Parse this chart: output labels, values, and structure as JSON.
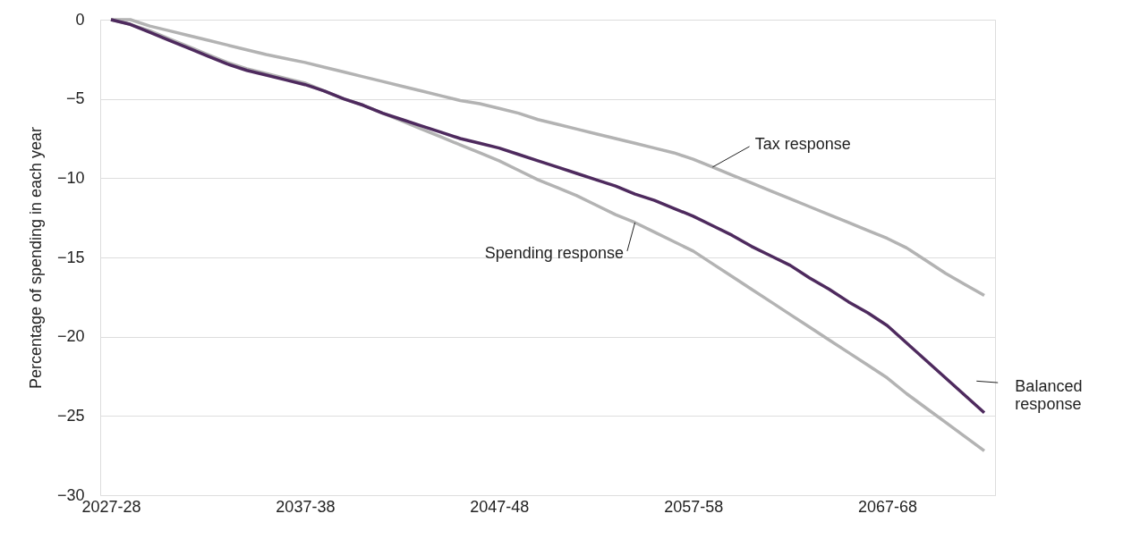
{
  "chart_data": {
    "type": "line",
    "ylabel": "Percentage of spending in each year",
    "categories": [
      "2027-28",
      null,
      null,
      null,
      null,
      null,
      null,
      null,
      null,
      null,
      "2037-38",
      null,
      null,
      null,
      null,
      null,
      null,
      null,
      null,
      null,
      "2047-48",
      null,
      null,
      null,
      null,
      null,
      null,
      null,
      null,
      null,
      "2057-58",
      null,
      null,
      null,
      null,
      null,
      null,
      null,
      null,
      null,
      "2067-68",
      null,
      null,
      null,
      null,
      null
    ],
    "series": [
      {
        "name": "Tax response",
        "color": "#b3b3b3",
        "values": [
          0,
          0,
          -0.4,
          -0.7,
          -1.0,
          -1.3,
          -1.6,
          -1.9,
          -2.2,
          -2.45,
          -2.7,
          -3.0,
          -3.3,
          -3.6,
          -3.9,
          -4.2,
          -4.5,
          -4.8,
          -5.1,
          -5.3,
          -5.6,
          -5.9,
          -6.3,
          -6.6,
          -6.9,
          -7.2,
          -7.5,
          -7.8,
          -8.1,
          -8.4,
          -8.8,
          -9.3,
          -9.8,
          -10.3,
          -10.8,
          -11.3,
          -11.8,
          -12.3,
          -12.8,
          -13.3,
          -13.8,
          -14.4,
          -15.2,
          -16.0,
          -16.7,
          -17.4
        ]
      },
      {
        "name": "Spending response",
        "color": "#b3b3b3",
        "values": [
          0,
          -0.3,
          -0.7,
          -1.2,
          -1.7,
          -2.2,
          -2.7,
          -3.1,
          -3.4,
          -3.7,
          -4.0,
          -4.5,
          -5.0,
          -5.4,
          -5.9,
          -6.4,
          -6.9,
          -7.4,
          -7.9,
          -8.4,
          -8.9,
          -9.5,
          -10.1,
          -10.6,
          -11.1,
          -11.7,
          -12.3,
          -12.8,
          -13.4,
          -14.0,
          -14.6,
          -15.4,
          -16.2,
          -17.0,
          -17.8,
          -18.6,
          -19.4,
          -20.2,
          -21.0,
          -21.8,
          -22.6,
          -23.6,
          -24.5,
          -25.4,
          -26.3,
          -27.2
        ]
      },
      {
        "name": "Balanced response",
        "color": "#4e2a5e",
        "values": [
          0,
          -0.3,
          -0.8,
          -1.3,
          -1.8,
          -2.3,
          -2.8,
          -3.2,
          -3.5,
          -3.8,
          -4.1,
          -4.5,
          -5.0,
          -5.4,
          -5.9,
          -6.3,
          -6.7,
          -7.1,
          -7.5,
          -7.8,
          -8.1,
          -8.5,
          -8.9,
          -9.3,
          -9.7,
          -10.1,
          -10.5,
          -11.0,
          -11.4,
          -11.9,
          -12.4,
          -13.0,
          -13.6,
          -14.3,
          -14.9,
          -15.5,
          -16.3,
          -17.0,
          -17.8,
          -18.5,
          -19.3,
          -20.4,
          -21.5,
          -22.6,
          -23.7,
          -24.8
        ]
      }
    ],
    "ylim": [
      -30,
      0
    ],
    "yticks": [
      -30,
      -25,
      -20,
      -15,
      -10,
      -5,
      0
    ],
    "grid": "y",
    "line_style": "solid",
    "marker": "none"
  }
}
